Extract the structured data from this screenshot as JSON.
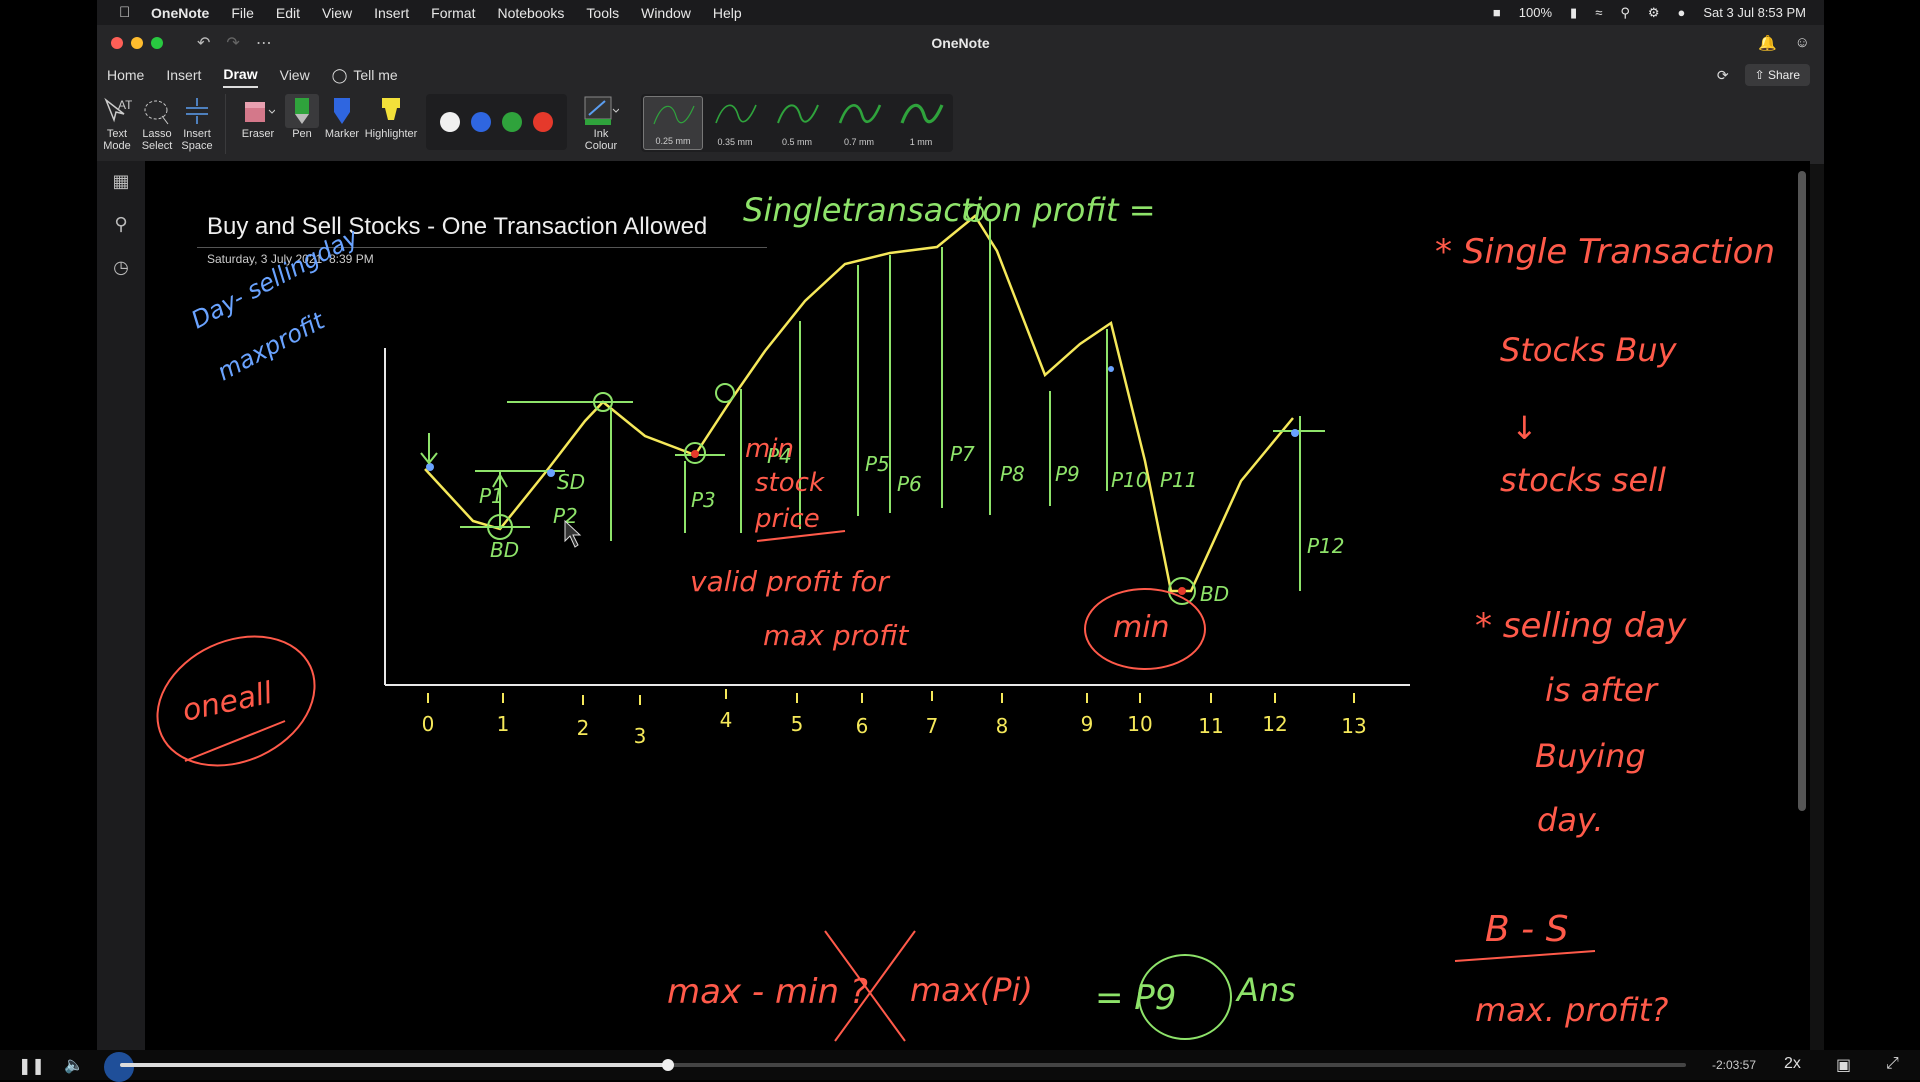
{
  "menubar": {
    "app_name": "OneNote",
    "items": [
      "File",
      "Edit",
      "View",
      "Insert",
      "Format",
      "Notebooks",
      "Tools",
      "Window",
      "Help"
    ],
    "battery": "100%",
    "datetime": "Sat 3 Jul  8:53 PM"
  },
  "window": {
    "title": "OneNote"
  },
  "tabs": {
    "items": [
      "Home",
      "Insert",
      "Draw",
      "View"
    ],
    "active": "Draw",
    "tell_me": "Tell me",
    "share": "Share"
  },
  "ribbon": {
    "text_mode": "Text\nMode",
    "lasso": "Lasso\nSelect",
    "insert_space": "Insert\nSpace",
    "eraser": "Eraser",
    "pen": "Pen",
    "marker": "Marker",
    "highlighter": "Highlighter",
    "ink_colour": "Ink\nColour",
    "colors": [
      "#f0f0f0",
      "#2f66e0",
      "#2fa33c",
      "#e5392b"
    ],
    "thickness": [
      "0.25 mm",
      "0.35 mm",
      "0.5 mm",
      "0.7 mm",
      "1 mm"
    ],
    "active_thickness": "0.25 mm"
  },
  "page": {
    "title": "Buy and Sell Stocks - One Transaction Allowed",
    "date": "Saturday, 3 July 2021",
    "time": "8:39 PM"
  },
  "ink_text": {
    "heading": "Singletransaction profit =",
    "blue_note_1": "Day- sellingday",
    "blue_note_2": "maxprofit",
    "overall": "oneall",
    "right_1": "* Single Transaction",
    "right_2": "Stocks Buy",
    "right_3": "stocks sell",
    "right_4": "* selling day",
    "right_5": "is after",
    "right_6": "Buying",
    "right_7": "day.",
    "right_8": "B - S",
    "right_9": "max. profit?",
    "min_label_1": "min",
    "min_label_2": "stock",
    "min_label_3": "price",
    "valid": "valid profit for",
    "valid_2": "max profit",
    "min_circle": "min",
    "bd1": "BD",
    "bd2": "BD",
    "sd": "SD",
    "bottom_1": "max - min ?",
    "bottom_2": "max(Pi)",
    "bottom_3": "= P9",
    "bottom_4": "Ans",
    "p_labels": [
      "P1",
      "P2",
      "P3",
      "P4",
      "P5",
      "P6",
      "P7",
      "P8",
      "P9",
      "P10",
      "P11",
      "P12"
    ],
    "x_ticks": [
      "0",
      "1",
      "2",
      "3",
      "4",
      "5",
      "6",
      "7",
      "8",
      "9",
      "10",
      "11",
      "12",
      "13"
    ]
  },
  "video": {
    "remaining": "-2:03:57",
    "speed": "2x",
    "progress": 0.35
  }
}
